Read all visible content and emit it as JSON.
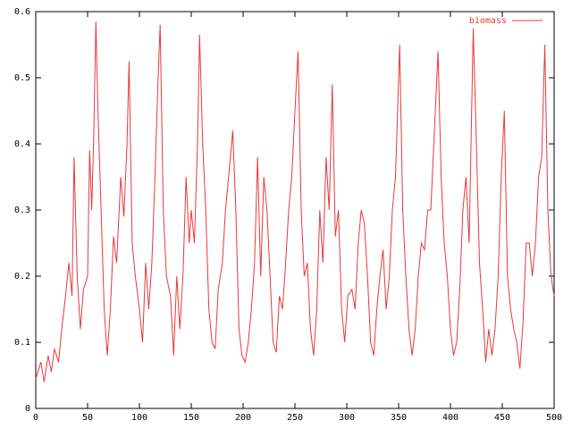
{
  "chart_data": {
    "type": "line",
    "series": [
      {
        "name": "biomass",
        "color": "#e83838",
        "x": [
          0,
          5,
          8,
          12,
          15,
          18,
          22,
          25,
          28,
          32,
          35,
          37,
          40,
          43,
          46,
          50,
          52,
          54,
          56,
          58,
          60,
          63,
          66,
          69,
          72,
          75,
          78,
          82,
          85,
          88,
          90,
          93,
          96,
          100,
          103,
          106,
          109,
          112,
          115,
          118,
          120,
          123,
          126,
          130,
          133,
          136,
          139,
          142,
          145,
          148,
          150,
          153,
          156,
          158,
          161,
          164,
          167,
          170,
          173,
          176,
          180,
          183,
          186,
          190,
          193,
          196,
          199,
          202,
          205,
          208,
          211,
          214,
          217,
          220,
          223,
          226,
          229,
          232,
          235,
          238,
          241,
          244,
          247,
          250,
          253,
          256,
          259,
          262,
          265,
          268,
          271,
          274,
          277,
          280,
          283,
          286,
          289,
          292,
          295,
          298,
          301,
          305,
          308,
          311,
          314,
          317,
          320,
          323,
          326,
          329,
          332,
          335,
          338,
          341,
          344,
          347,
          351,
          354,
          357,
          360,
          363,
          366,
          369,
          372,
          375,
          378,
          381,
          384,
          388,
          391,
          394,
          397,
          400,
          403,
          406,
          409,
          412,
          415,
          418,
          422,
          425,
          428,
          431,
          434,
          437,
          440,
          443,
          446,
          449,
          452,
          455,
          458,
          461,
          464,
          467,
          470,
          473,
          476,
          479,
          482,
          485,
          488,
          491,
          494,
          497,
          500
        ],
        "values": [
          0.045,
          0.07,
          0.04,
          0.08,
          0.055,
          0.09,
          0.07,
          0.12,
          0.16,
          0.22,
          0.17,
          0.38,
          0.2,
          0.12,
          0.18,
          0.2,
          0.39,
          0.3,
          0.42,
          0.585,
          0.45,
          0.3,
          0.15,
          0.08,
          0.15,
          0.26,
          0.22,
          0.35,
          0.29,
          0.4,
          0.525,
          0.25,
          0.2,
          0.15,
          0.1,
          0.22,
          0.15,
          0.22,
          0.35,
          0.5,
          0.58,
          0.3,
          0.2,
          0.17,
          0.08,
          0.2,
          0.12,
          0.2,
          0.35,
          0.25,
          0.3,
          0.25,
          0.4,
          0.565,
          0.4,
          0.3,
          0.15,
          0.1,
          0.09,
          0.18,
          0.22,
          0.3,
          0.35,
          0.42,
          0.3,
          0.12,
          0.08,
          0.07,
          0.1,
          0.15,
          0.22,
          0.38,
          0.2,
          0.35,
          0.3,
          0.2,
          0.1,
          0.085,
          0.17,
          0.15,
          0.22,
          0.3,
          0.35,
          0.45,
          0.54,
          0.3,
          0.2,
          0.22,
          0.12,
          0.08,
          0.15,
          0.3,
          0.22,
          0.38,
          0.3,
          0.49,
          0.26,
          0.3,
          0.15,
          0.1,
          0.17,
          0.18,
          0.15,
          0.25,
          0.3,
          0.28,
          0.2,
          0.1,
          0.08,
          0.15,
          0.2,
          0.24,
          0.15,
          0.2,
          0.3,
          0.35,
          0.55,
          0.3,
          0.2,
          0.12,
          0.08,
          0.12,
          0.2,
          0.25,
          0.24,
          0.3,
          0.3,
          0.4,
          0.54,
          0.35,
          0.25,
          0.2,
          0.12,
          0.08,
          0.1,
          0.18,
          0.3,
          0.35,
          0.25,
          0.575,
          0.4,
          0.22,
          0.15,
          0.07,
          0.12,
          0.08,
          0.12,
          0.2,
          0.35,
          0.45,
          0.2,
          0.15,
          0.12,
          0.1,
          0.06,
          0.13,
          0.25,
          0.25,
          0.2,
          0.25,
          0.35,
          0.38,
          0.55,
          0.3,
          0.2,
          0.17
        ]
      }
    ],
    "xlim": [
      0,
      500
    ],
    "xticks": [
      0,
      50,
      100,
      150,
      200,
      250,
      300,
      350,
      400,
      450,
      500
    ],
    "ylim": [
      0,
      0.6
    ],
    "yticks": [
      0,
      0.1,
      0.2,
      0.3,
      0.4,
      0.5,
      0.6
    ],
    "legend": "top-right"
  }
}
